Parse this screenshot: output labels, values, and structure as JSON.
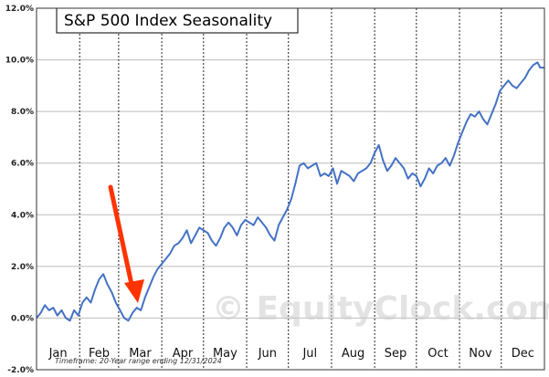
{
  "chart_data": {
    "type": "line",
    "title": "S&P 500 Index Seasonality",
    "xlabel": "",
    "ylabel": "",
    "x_domain": [
      0,
      365
    ],
    "ylim": [
      -2.0,
      12.0
    ],
    "y_ticks": [
      -2.0,
      0.0,
      2.0,
      4.0,
      6.0,
      8.0,
      10.0,
      12.0
    ],
    "y_tick_labels": [
      "-2.0%",
      "0.0%",
      "2.0%",
      "4.0%",
      "6.0%",
      "8.0%",
      "10.0%",
      "12.0%"
    ],
    "months": [
      "Jan",
      "Feb",
      "Mar",
      "Apr",
      "May",
      "Jun",
      "Jul",
      "Aug",
      "Sep",
      "Oct",
      "Nov",
      "Dec"
    ],
    "month_starts": [
      0,
      31,
      59,
      90,
      120,
      151,
      181,
      212,
      243,
      273,
      304,
      334
    ],
    "grid": true,
    "line_color": "#4472c4",
    "arrow_color": "#ff3300",
    "series": [
      {
        "name": "S&P 500 Index Seasonality",
        "x": [
          0,
          3,
          6,
          9,
          12,
          15,
          18,
          21,
          24,
          27,
          30,
          33,
          36,
          39,
          42,
          45,
          48,
          51,
          54,
          57,
          60,
          63,
          66,
          69,
          72,
          75,
          78,
          81,
          84,
          87,
          90,
          93,
          96,
          99,
          102,
          105,
          108,
          111,
          114,
          117,
          120,
          123,
          126,
          129,
          132,
          135,
          138,
          141,
          144,
          147,
          150,
          153,
          156,
          159,
          162,
          165,
          168,
          171,
          174,
          177,
          180,
          183,
          186,
          189,
          192,
          195,
          198,
          201,
          204,
          207,
          210,
          213,
          216,
          219,
          222,
          225,
          228,
          231,
          234,
          237,
          240,
          243,
          246,
          249,
          252,
          255,
          258,
          261,
          264,
          267,
          270,
          273,
          276,
          279,
          282,
          285,
          288,
          291,
          294,
          297,
          300,
          303,
          306,
          309,
          312,
          315,
          318,
          321,
          324,
          327,
          330,
          333,
          336,
          339,
          342,
          345,
          348,
          351,
          354,
          357,
          360,
          362,
          365
        ],
        "values": [
          0.0,
          0.2,
          0.5,
          0.3,
          0.4,
          0.1,
          0.3,
          0.0,
          -0.1,
          0.3,
          0.1,
          0.6,
          0.8,
          0.6,
          1.1,
          1.5,
          1.7,
          1.3,
          1.0,
          0.6,
          0.3,
          0.0,
          -0.1,
          0.2,
          0.4,
          0.3,
          0.8,
          1.2,
          1.6,
          1.9,
          2.1,
          2.3,
          2.5,
          2.8,
          2.9,
          3.1,
          3.4,
          2.9,
          3.2,
          3.5,
          3.4,
          3.3,
          3.0,
          2.8,
          3.1,
          3.5,
          3.7,
          3.5,
          3.2,
          3.6,
          3.8,
          3.7,
          3.6,
          3.9,
          3.7,
          3.5,
          3.2,
          3.0,
          3.6,
          3.9,
          4.2,
          4.6,
          5.2,
          5.9,
          6.0,
          5.8,
          5.9,
          6.0,
          5.5,
          5.6,
          5.5,
          5.8,
          5.2,
          5.7,
          5.6,
          5.5,
          5.3,
          5.6,
          5.7,
          5.8,
          6.0,
          6.4,
          6.7,
          6.1,
          5.7,
          5.9,
          6.2,
          6.0,
          5.8,
          5.4,
          5.6,
          5.5,
          5.1,
          5.4,
          5.8,
          5.6,
          5.9,
          6.0,
          6.2,
          5.9,
          6.3,
          6.8,
          7.2,
          7.6,
          7.9,
          7.8,
          8.0,
          7.7,
          7.5,
          7.9,
          8.3,
          8.8,
          9.0,
          9.2,
          9.0,
          8.9,
          9.1,
          9.3,
          9.6,
          9.8,
          9.9,
          9.7,
          9.7
        ]
      }
    ]
  },
  "watermark": "© EquityClock.com",
  "footnote": "Timeframe: 20-Year range ending 12/31/2024"
}
